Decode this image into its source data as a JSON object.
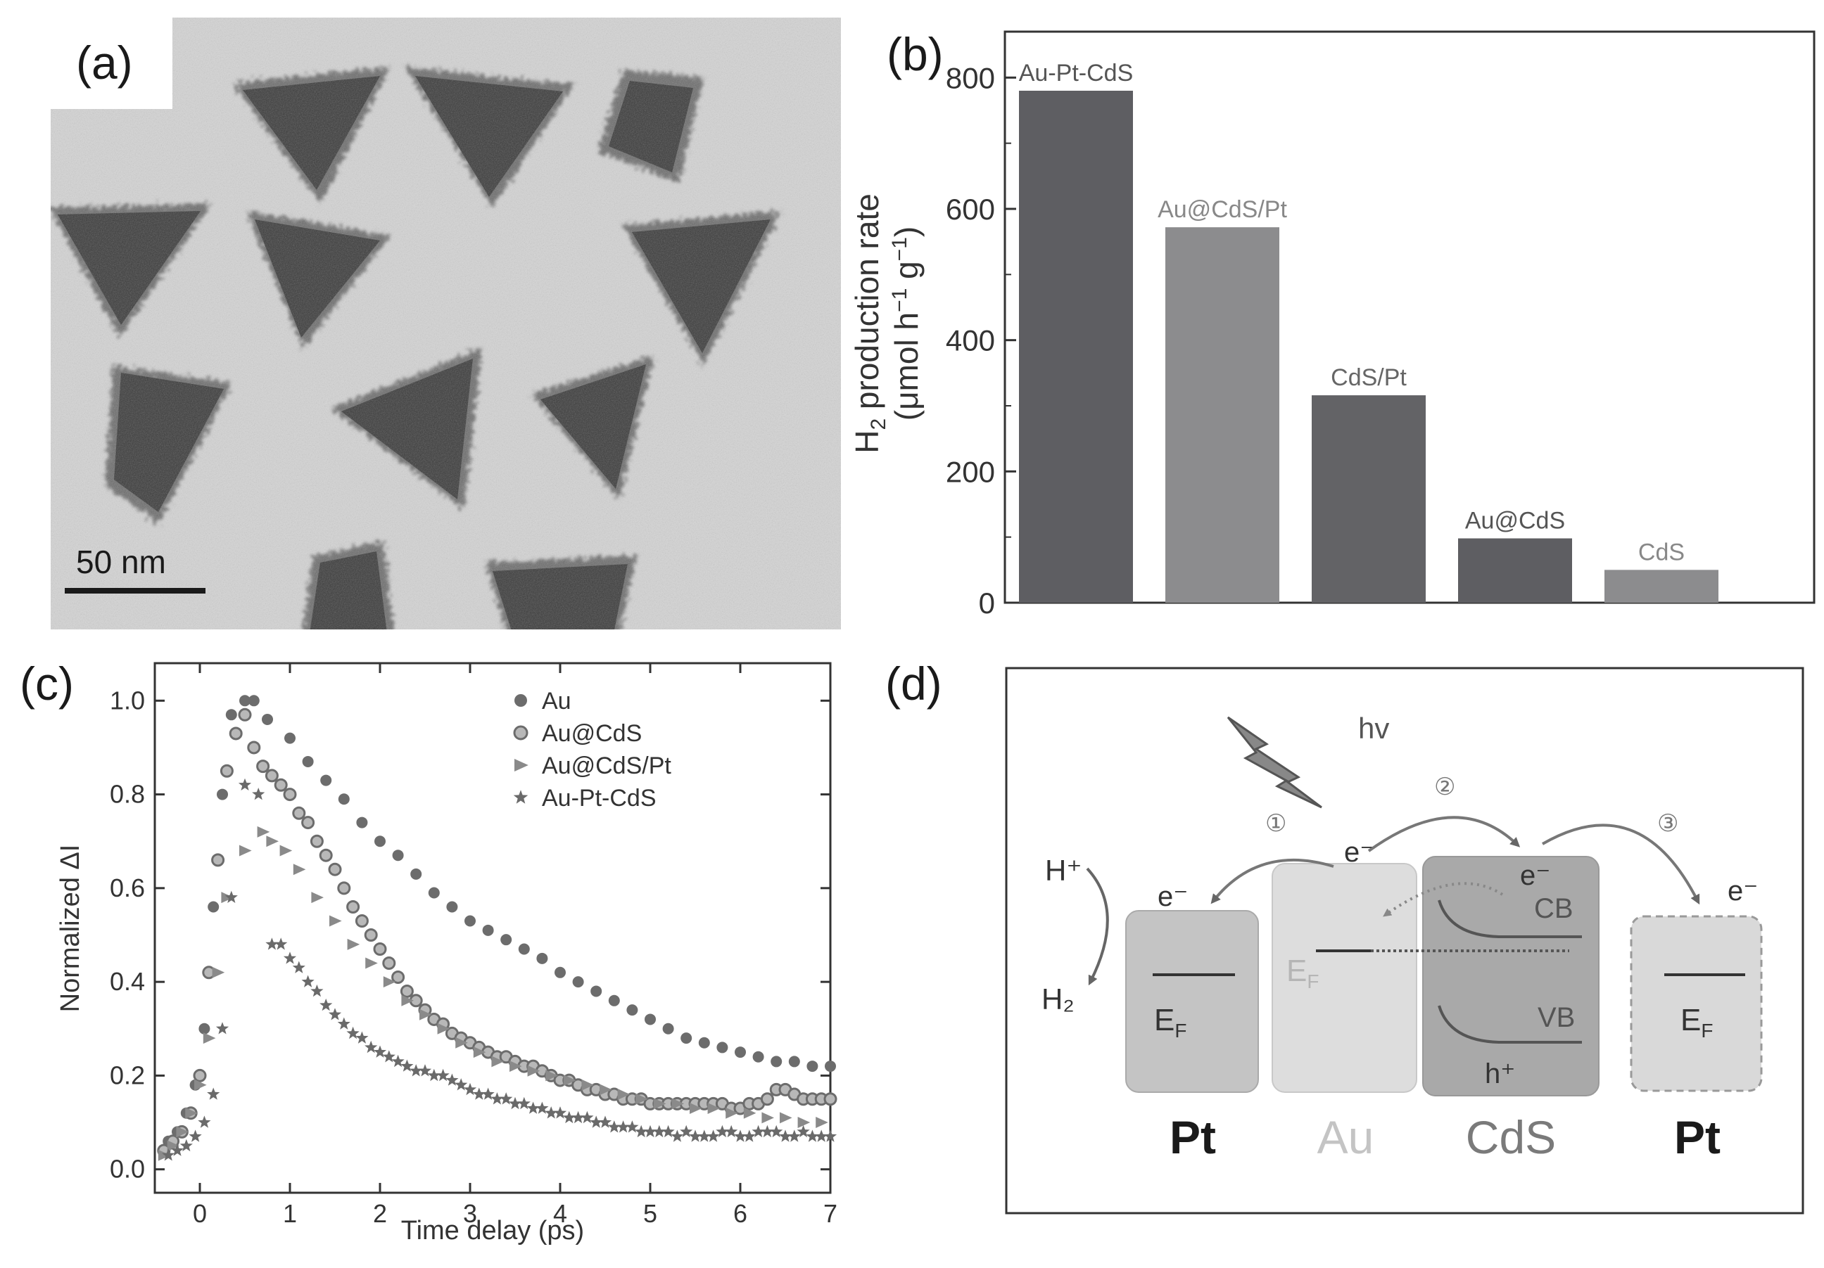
{
  "panels": {
    "a": {
      "label": "(a)",
      "scale_bar_text": "50 nm"
    },
    "b": {
      "label": "(b)"
    },
    "c": {
      "label": "(c)"
    },
    "d": {
      "label": "(d)",
      "hv": "hv",
      "step_1": "①",
      "step_2": "②",
      "step_3": "③",
      "electron": "e⁻",
      "h_plus": "H⁺",
      "h2": "H₂",
      "ef": "E",
      "ef_sub": "F",
      "cb": "CB",
      "vb": "VB",
      "hole": "h⁺",
      "materials": [
        "Pt",
        "Au",
        "CdS",
        "Pt"
      ]
    }
  },
  "chart_data": [
    {
      "type": "bar",
      "panel": "b",
      "categories": [
        "Au-Pt-CdS",
        "Au@CdS/Pt",
        "CdS/Pt",
        "Au@CdS",
        "CdS"
      ],
      "values": [
        780,
        572,
        316,
        98,
        50
      ],
      "bar_colors": [
        "#5e5e62",
        "#8c8c8e",
        "#636366",
        "#5e5e62",
        "#8c8c8e"
      ],
      "label_colors": [
        "#555555",
        "#888888",
        "#666666",
        "#555555",
        "#888888"
      ],
      "ylabel_parts": [
        "H",
        "2",
        " production rate",
        "(μmol h",
        "−1",
        " g",
        "−1",
        ")"
      ],
      "ylim": [
        0,
        870
      ],
      "yticks": [
        0,
        200,
        400,
        600,
        800
      ],
      "ytick_labels": [
        "0",
        "200",
        "400",
        "600",
        "800"
      ]
    },
    {
      "type": "scatter",
      "panel": "c",
      "xlabel": "Time delay (ps)",
      "ylabel": "Normalized ΔI",
      "xlim": [
        -0.5,
        7
      ],
      "ylim": [
        -0.05,
        1.08
      ],
      "xticks": [
        0,
        1,
        2,
        3,
        4,
        5,
        6,
        7
      ],
      "xtick_labels": [
        "0",
        "1",
        "2",
        "3",
        "4",
        "5",
        "6",
        "7"
      ],
      "yticks": [
        0.0,
        0.2,
        0.4,
        0.6,
        0.8,
        1.0
      ],
      "ytick_labels": [
        "0.0",
        "0.2",
        "0.4",
        "0.6",
        "0.8",
        "1.0"
      ],
      "legend_position": "top-right",
      "series": [
        {
          "name": "Au",
          "marker": "circle",
          "color": "#6c6c6c",
          "x": [
            -0.35,
            -0.25,
            -0.15,
            -0.05,
            0.05,
            0.15,
            0.25,
            0.35,
            0.5,
            0.6,
            0.75,
            1.0,
            1.2,
            1.4,
            1.6,
            1.8,
            2.0,
            2.2,
            2.4,
            2.6,
            2.8,
            3.0,
            3.2,
            3.4,
            3.6,
            3.8,
            4.0,
            4.2,
            4.4,
            4.6,
            4.8,
            5.0,
            5.2,
            5.4,
            5.6,
            5.8,
            6.0,
            6.2,
            6.4,
            6.6,
            6.8,
            7.0
          ],
          "y": [
            0.06,
            0.08,
            0.12,
            0.18,
            0.3,
            0.56,
            0.8,
            0.97,
            1.0,
            1.0,
            0.96,
            0.92,
            0.87,
            0.83,
            0.79,
            0.74,
            0.7,
            0.67,
            0.63,
            0.59,
            0.56,
            0.53,
            0.51,
            0.49,
            0.47,
            0.45,
            0.42,
            0.4,
            0.38,
            0.36,
            0.34,
            0.32,
            0.3,
            0.28,
            0.27,
            0.26,
            0.25,
            0.24,
            0.23,
            0.23,
            0.22,
            0.22
          ]
        },
        {
          "name": "Au@CdS",
          "marker": "ring",
          "color": "#6c6c6c",
          "x": [
            -0.4,
            -0.3,
            -0.2,
            -0.1,
            0.0,
            0.1,
            0.2,
            0.3,
            0.4,
            0.5,
            0.6,
            0.7,
            0.8,
            0.9,
            1.0,
            1.1,
            1.2,
            1.3,
            1.4,
            1.5,
            1.6,
            1.7,
            1.8,
            1.9,
            2.0,
            2.1,
            2.2,
            2.3,
            2.4,
            2.5,
            2.6,
            2.7,
            2.8,
            2.9,
            3.0,
            3.1,
            3.2,
            3.3,
            3.4,
            3.5,
            3.6,
            3.7,
            3.8,
            3.9,
            4.0,
            4.1,
            4.2,
            4.3,
            4.4,
            4.5,
            4.6,
            4.7,
            4.8,
            4.9,
            5.0,
            5.1,
            5.2,
            5.3,
            5.4,
            5.5,
            5.6,
            5.7,
            5.8,
            5.9,
            6.0,
            6.1,
            6.2,
            6.3,
            6.4,
            6.5,
            6.6,
            6.7,
            6.8,
            6.9,
            7.0
          ],
          "y": [
            0.04,
            0.06,
            0.08,
            0.12,
            0.2,
            0.42,
            0.66,
            0.85,
            0.93,
            0.97,
            0.9,
            0.86,
            0.84,
            0.82,
            0.8,
            0.76,
            0.74,
            0.7,
            0.67,
            0.64,
            0.6,
            0.56,
            0.53,
            0.5,
            0.47,
            0.44,
            0.41,
            0.38,
            0.36,
            0.34,
            0.32,
            0.31,
            0.29,
            0.28,
            0.27,
            0.26,
            0.25,
            0.24,
            0.24,
            0.23,
            0.22,
            0.22,
            0.21,
            0.2,
            0.19,
            0.19,
            0.18,
            0.17,
            0.17,
            0.16,
            0.16,
            0.15,
            0.15,
            0.15,
            0.14,
            0.14,
            0.14,
            0.14,
            0.14,
            0.14,
            0.14,
            0.14,
            0.14,
            0.13,
            0.13,
            0.14,
            0.14,
            0.15,
            0.17,
            0.17,
            0.16,
            0.15,
            0.15,
            0.15,
            0.15
          ]
        },
        {
          "name": "Au@CdS/Pt",
          "marker": "triangle",
          "color": "#8a8a8a",
          "x": [
            -0.4,
            -0.3,
            -0.2,
            -0.1,
            0.0,
            0.1,
            0.2,
            0.3,
            0.5,
            0.7,
            0.8,
            0.95,
            1.1,
            1.3,
            1.5,
            1.7,
            1.9,
            2.1,
            2.3,
            2.5,
            2.7,
            2.9,
            3.1,
            3.3,
            3.5,
            3.7,
            3.9,
            4.1,
            4.3,
            4.5,
            4.7,
            4.9,
            5.1,
            5.3,
            5.5,
            5.7,
            5.9,
            6.1,
            6.3,
            6.5,
            6.7,
            6.9
          ],
          "y": [
            0.03,
            0.05,
            0.08,
            0.12,
            0.18,
            0.28,
            0.42,
            0.58,
            0.68,
            0.72,
            0.7,
            0.68,
            0.64,
            0.58,
            0.53,
            0.48,
            0.44,
            0.4,
            0.36,
            0.33,
            0.3,
            0.27,
            0.25,
            0.23,
            0.22,
            0.21,
            0.2,
            0.19,
            0.18,
            0.17,
            0.16,
            0.15,
            0.14,
            0.14,
            0.13,
            0.13,
            0.12,
            0.12,
            0.11,
            0.11,
            0.1,
            0.1
          ]
        },
        {
          "name": "Au-Pt-CdS",
          "marker": "star",
          "color": "#6a6a6a",
          "x": [
            -0.35,
            -0.25,
            -0.15,
            -0.05,
            0.05,
            0.15,
            0.25,
            0.35,
            0.5,
            0.65,
            0.8,
            0.9,
            1.0,
            1.1,
            1.2,
            1.3,
            1.4,
            1.5,
            1.6,
            1.7,
            1.8,
            1.9,
            2.0,
            2.1,
            2.2,
            2.3,
            2.4,
            2.5,
            2.6,
            2.7,
            2.8,
            2.9,
            3.0,
            3.1,
            3.2,
            3.3,
            3.4,
            3.5,
            3.6,
            3.7,
            3.8,
            3.9,
            4.0,
            4.1,
            4.2,
            4.3,
            4.4,
            4.5,
            4.6,
            4.7,
            4.8,
            4.9,
            5.0,
            5.1,
            5.2,
            5.3,
            5.4,
            5.5,
            5.6,
            5.7,
            5.8,
            5.9,
            6.0,
            6.1,
            6.2,
            6.3,
            6.4,
            6.5,
            6.6,
            6.7,
            6.8,
            6.9,
            7.0
          ],
          "y": [
            0.03,
            0.04,
            0.05,
            0.07,
            0.1,
            0.16,
            0.3,
            0.58,
            0.82,
            0.8,
            0.48,
            0.48,
            0.45,
            0.43,
            0.4,
            0.38,
            0.35,
            0.33,
            0.31,
            0.29,
            0.28,
            0.26,
            0.25,
            0.24,
            0.23,
            0.22,
            0.21,
            0.21,
            0.2,
            0.2,
            0.19,
            0.18,
            0.17,
            0.16,
            0.16,
            0.15,
            0.15,
            0.14,
            0.14,
            0.13,
            0.13,
            0.12,
            0.12,
            0.11,
            0.11,
            0.11,
            0.1,
            0.1,
            0.09,
            0.09,
            0.09,
            0.08,
            0.08,
            0.08,
            0.08,
            0.07,
            0.08,
            0.07,
            0.07,
            0.07,
            0.08,
            0.08,
            0.07,
            0.07,
            0.08,
            0.08,
            0.08,
            0.07,
            0.07,
            0.08,
            0.07,
            0.07,
            0.07
          ]
        }
      ]
    }
  ]
}
